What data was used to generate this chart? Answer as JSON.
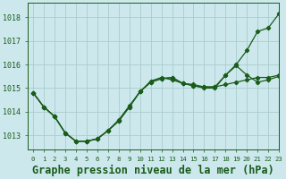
{
  "background_color": "#cce8ed",
  "grid_color": "#aacccc",
  "line_color": "#1a5c1a",
  "title": "Graphe pression niveau de la mer (hPa)",
  "xlim": [
    -0.5,
    23
  ],
  "ylim": [
    1012.4,
    1018.6
  ],
  "yticks": [
    1013,
    1014,
    1015,
    1016,
    1017,
    1018
  ],
  "xticks": [
    0,
    1,
    2,
    3,
    4,
    5,
    6,
    7,
    8,
    9,
    10,
    11,
    12,
    13,
    14,
    15,
    16,
    17,
    18,
    19,
    20,
    21,
    22,
    23
  ],
  "series": [
    [
      1014.8,
      1014.2,
      1013.8,
      1013.1,
      1012.75,
      1012.75,
      1012.85,
      1013.2,
      1013.6,
      1014.2,
      1014.85,
      1015.3,
      1015.45,
      1015.35,
      1015.2,
      1015.15,
      1015.05,
      1015.05,
      1015.15,
      1015.25,
      1015.35,
      1015.45,
      1015.45,
      1015.55
    ],
    [
      1014.8,
      1014.2,
      1013.8,
      1013.1,
      1012.75,
      1012.75,
      1012.85,
      1013.2,
      1013.6,
      1014.2,
      1014.85,
      1015.25,
      1015.4,
      1015.45,
      1015.2,
      1015.1,
      1015.0,
      1015.0,
      1015.55,
      1015.95,
      1015.55,
      1015.25,
      1015.35,
      1015.5
    ],
    [
      1014.8,
      1014.2,
      1013.8,
      1013.1,
      1012.75,
      1012.75,
      1012.85,
      1013.2,
      1013.65,
      1014.25,
      1014.85,
      1015.25,
      1015.4,
      1015.45,
      1015.2,
      1015.1,
      1015.05,
      1015.05,
      1015.55,
      1016.0,
      1016.6,
      1017.4,
      1017.55,
      1018.15
    ]
  ],
  "title_fontsize": 8.5,
  "tick_fontsize": 6,
  "marker": "D",
  "markersize": 2.2,
  "linewidth": 0.9
}
